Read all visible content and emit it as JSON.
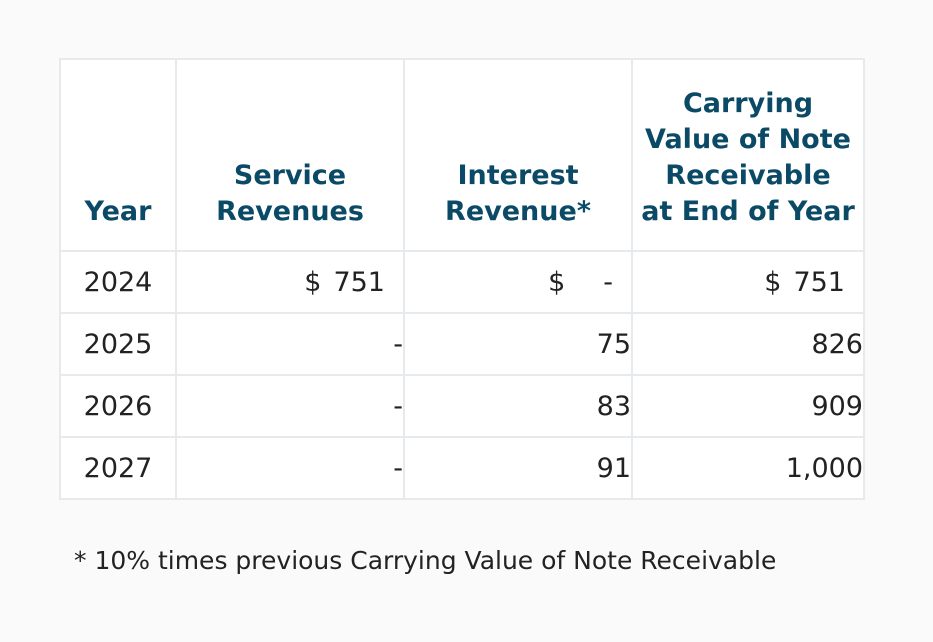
{
  "table": {
    "headers": {
      "year": "Year",
      "service_line1": "Service",
      "service_line2": "Revenues",
      "interest_line1": "Interest",
      "interest_line2": "Revenue*",
      "cv_line1": "Carrying",
      "cv_line2": "Value of Note",
      "cv_line3": "Receivable",
      "cv_line4": "at End of Year"
    },
    "rows": [
      {
        "year": "2024",
        "service_symbol": "$",
        "service": "751",
        "interest_symbol": "$",
        "interest": "-",
        "cv_symbol": "$",
        "cv": "751"
      },
      {
        "year": "2025",
        "service": "-",
        "interest": "75",
        "cv": "826"
      },
      {
        "year": "2026",
        "service": "-",
        "interest": "83",
        "cv": "909"
      },
      {
        "year": "2027",
        "service": "-",
        "interest": "91",
        "cv": "1,000"
      }
    ]
  },
  "footnote": "* 10% times previous Carrying Value of Note Receivable",
  "colors": {
    "header_text": "#0b4a66",
    "grid": "#e6eaec"
  }
}
